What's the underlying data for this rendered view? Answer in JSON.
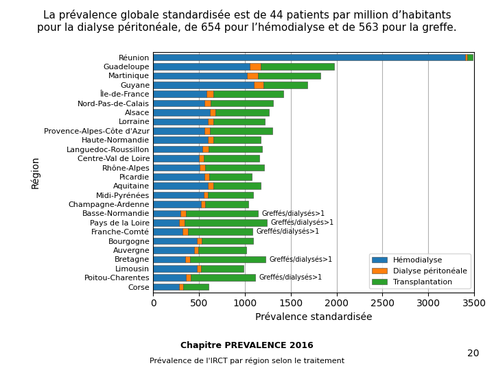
{
  "chart_data": {
    "type": "bar",
    "orientation": "horizontal",
    "stacked": true,
    "title": "La prévalence globale standardisée est de 44 patients par million d’habitants\npour la dialyse péritonéale, de 654 pour l’hémodialyse et de 563 pour la greffe.",
    "xlabel": "Prévalence standardisée",
    "ylabel": "Région",
    "categories": [
      "Réunion",
      "Guadeloupe",
      "Martinique",
      "Guyane",
      "Île-de-France",
      "Nord-Pas-de-Calais",
      "Alsace",
      "Lorraine",
      "Provence-Alpes-Côte d'Azur",
      "Haute-Normandie",
      "Languedoc-Roussillon",
      "Centre-Val de Loire",
      "Rhône-Alpes",
      "Picardie",
      "Aquitaine",
      "Midi-Pyrénées",
      "Champagne-Ardenne",
      "Basse-Normandie",
      "Pays de la Loire",
      "Franche-Comté",
      "Bourgogne",
      "Auvergne",
      "Bretagne",
      "Limousin",
      "Poitou-Charentes",
      "Corse"
    ],
    "series": [
      {
        "name": "Hémodialyse",
        "values": [
          3400,
          1050,
          1020,
          1100,
          580,
          560,
          620,
          600,
          560,
          600,
          540,
          500,
          510,
          560,
          600,
          550,
          520,
          300,
          280,
          320,
          480,
          450,
          350,
          480,
          360,
          280
        ]
      },
      {
        "name": "Dialyse péritonéale",
        "values": [
          20,
          120,
          120,
          100,
          80,
          70,
          60,
          60,
          60,
          55,
          65,
          55,
          60,
          55,
          55,
          50,
          50,
          60,
          60,
          60,
          50,
          45,
          55,
          45,
          50,
          45
        ]
      },
      {
        "name": "Transplantation",
        "values": [
          60,
          800,
          680,
          480,
          760,
          680,
          580,
          560,
          680,
          520,
          580,
          600,
          640,
          460,
          520,
          490,
          470,
          780,
          900,
          700,
          560,
          520,
          820,
          460,
          700,
          280
        ]
      }
    ],
    "xlim": [
      0,
      3500
    ],
    "xticks": [
      0,
      500,
      1000,
      1500,
      2000,
      2500,
      3000,
      3500
    ],
    "grid": true,
    "legend": "lower right",
    "annotations": [
      {
        "category": "Basse-Normandie",
        "text": "Greffés/dialysés>1"
      },
      {
        "category": "Pays de la Loire",
        "text": "Greffés/dialysés>1"
      },
      {
        "category": "Franche-Comté",
        "text": "Greffés/dialysés>1"
      },
      {
        "category": "Bretagne",
        "text": "Greffés/dialysés>1"
      },
      {
        "category": "Poitou-Charentes",
        "text": "Greffés/dialysés>1"
      }
    ],
    "footer": [
      "Chapitre PREVALENCE 2016",
      "Prévalence de l'IRCT par région selon le traitement"
    ],
    "page_number": "20"
  }
}
